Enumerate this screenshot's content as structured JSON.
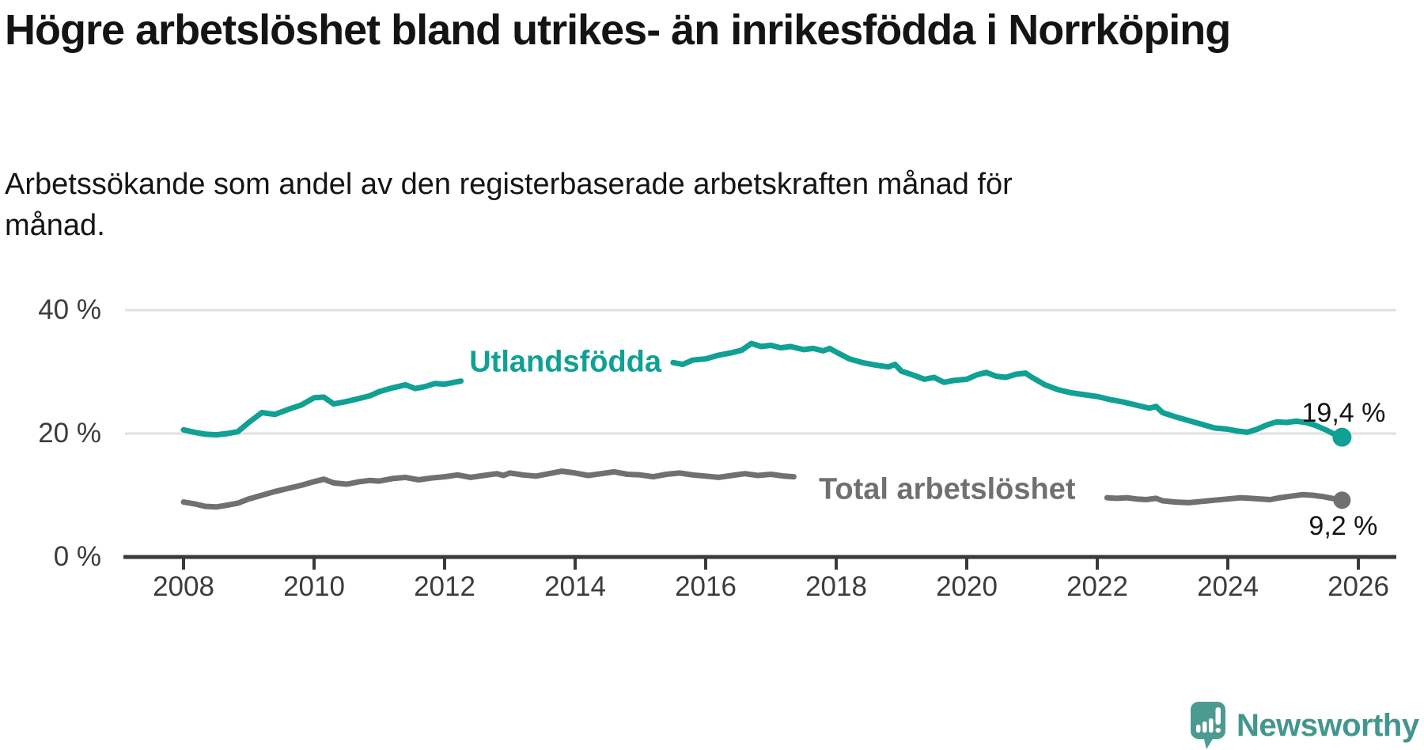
{
  "header": {
    "title": "Högre arbetslöshet bland utrikes- än inrikesfödda i Norrköping",
    "subtitle": "Arbetssökande som andel av den registerbaserade arbetskraften månad för månad."
  },
  "footer": {
    "brand_name": "Newsworthy",
    "logo_icon": "newsworthy-chart-speech-bubble-icon"
  },
  "colors": {
    "foreign_born_line": "#10A094",
    "total_line": "#707072",
    "grid_line": "#E1E1E1",
    "axis_line": "#3A3A3A",
    "tick_label": "#3C3C3C",
    "heading_text": "#141414",
    "annotation_text": "#141414",
    "logo_bubble": "#4C9B93",
    "logo_text": "#43968E"
  },
  "chart_data": {
    "type": "line",
    "title": "Högre arbetslöshet bland utrikes- än inrikesfödda i Norrköping",
    "subtitle": "Arbetssökande som andel av den registerbaserade arbetskraften månad för månad.",
    "grid": "horizontal-only",
    "legend_position": "inline-on-line",
    "x_axis": {
      "unit": "year",
      "tick_years": [
        2008,
        2010,
        2012,
        2014,
        2016,
        2018,
        2020,
        2022,
        2024,
        2026
      ],
      "range": [
        2007.1,
        2026.55
      ]
    },
    "y_axis": {
      "unit": "percent",
      "ticks": [
        {
          "value": 0,
          "label": "0 %"
        },
        {
          "value": 20,
          "label": "20 %"
        },
        {
          "value": 40,
          "label": "40 %"
        }
      ],
      "gridline_values": [
        20,
        40
      ],
      "range": [
        0,
        46
      ]
    },
    "series": [
      {
        "name": "Utlandsfödda",
        "color": "#10A094",
        "end_label": "19,4 %",
        "end_value": 19.4,
        "inline_label": {
          "text": "Utlandsfödda",
          "year": 2013.85,
          "value": 31.5
        },
        "label_gap_years": [
          2012.25,
          2015.5
        ],
        "points": [
          [
            2008.0,
            20.6
          ],
          [
            2008.17,
            20.2
          ],
          [
            2008.33,
            19.9
          ],
          [
            2008.5,
            19.8
          ],
          [
            2008.67,
            20.0
          ],
          [
            2008.83,
            20.3
          ],
          [
            2009.0,
            21.8
          ],
          [
            2009.2,
            23.4
          ],
          [
            2009.4,
            23.1
          ],
          [
            2009.6,
            23.9
          ],
          [
            2009.8,
            24.6
          ],
          [
            2010.0,
            25.8
          ],
          [
            2010.15,
            25.9
          ],
          [
            2010.3,
            24.8
          ],
          [
            2010.5,
            25.2
          ],
          [
            2010.7,
            25.7
          ],
          [
            2010.85,
            26.1
          ],
          [
            2011.0,
            26.8
          ],
          [
            2011.2,
            27.4
          ],
          [
            2011.4,
            27.9
          ],
          [
            2011.55,
            27.3
          ],
          [
            2011.7,
            27.6
          ],
          [
            2011.85,
            28.1
          ],
          [
            2012.0,
            28.0
          ],
          [
            2012.25,
            28.5
          ],
          [
            2012.5,
            28.7
          ],
          [
            2012.75,
            28.9
          ],
          [
            2013.0,
            29.2
          ],
          [
            2013.25,
            29.4
          ],
          [
            2013.5,
            29.5
          ],
          [
            2013.75,
            29.8
          ],
          [
            2014.0,
            30.1
          ],
          [
            2014.25,
            30.3
          ],
          [
            2014.5,
            30.6
          ],
          [
            2014.75,
            30.8
          ],
          [
            2015.0,
            31.0
          ],
          [
            2015.25,
            31.3
          ],
          [
            2015.5,
            31.5
          ],
          [
            2015.65,
            31.2
          ],
          [
            2015.8,
            31.9
          ],
          [
            2016.0,
            32.1
          ],
          [
            2016.2,
            32.7
          ],
          [
            2016.4,
            33.1
          ],
          [
            2016.55,
            33.5
          ],
          [
            2016.7,
            34.6
          ],
          [
            2016.85,
            34.1
          ],
          [
            2017.0,
            34.3
          ],
          [
            2017.15,
            33.9
          ],
          [
            2017.3,
            34.1
          ],
          [
            2017.5,
            33.6
          ],
          [
            2017.65,
            33.8
          ],
          [
            2017.8,
            33.4
          ],
          [
            2017.9,
            33.8
          ],
          [
            2018.0,
            33.2
          ],
          [
            2018.2,
            32.1
          ],
          [
            2018.4,
            31.5
          ],
          [
            2018.6,
            31.1
          ],
          [
            2018.8,
            30.8
          ],
          [
            2018.9,
            31.2
          ],
          [
            2019.0,
            30.1
          ],
          [
            2019.2,
            29.4
          ],
          [
            2019.35,
            28.8
          ],
          [
            2019.5,
            29.1
          ],
          [
            2019.65,
            28.3
          ],
          [
            2019.8,
            28.6
          ],
          [
            2020.0,
            28.8
          ],
          [
            2020.15,
            29.5
          ],
          [
            2020.3,
            29.9
          ],
          [
            2020.45,
            29.3
          ],
          [
            2020.6,
            29.1
          ],
          [
            2020.75,
            29.6
          ],
          [
            2020.9,
            29.8
          ],
          [
            2021.0,
            29.1
          ],
          [
            2021.2,
            27.9
          ],
          [
            2021.4,
            27.1
          ],
          [
            2021.6,
            26.6
          ],
          [
            2021.8,
            26.3
          ],
          [
            2022.0,
            26.0
          ],
          [
            2022.2,
            25.5
          ],
          [
            2022.4,
            25.1
          ],
          [
            2022.6,
            24.6
          ],
          [
            2022.8,
            24.1
          ],
          [
            2022.9,
            24.4
          ],
          [
            2023.0,
            23.4
          ],
          [
            2023.2,
            22.7
          ],
          [
            2023.4,
            22.1
          ],
          [
            2023.6,
            21.5
          ],
          [
            2023.8,
            20.9
          ],
          [
            2024.0,
            20.7
          ],
          [
            2024.15,
            20.4
          ],
          [
            2024.3,
            20.2
          ],
          [
            2024.45,
            20.7
          ],
          [
            2024.6,
            21.4
          ],
          [
            2024.75,
            21.9
          ],
          [
            2024.9,
            21.8
          ],
          [
            2025.05,
            22.0
          ],
          [
            2025.2,
            21.8
          ],
          [
            2025.35,
            21.3
          ],
          [
            2025.5,
            20.6
          ],
          [
            2025.65,
            19.8
          ],
          [
            2025.75,
            19.4
          ]
        ]
      },
      {
        "name": "Total arbetslöshet",
        "color": "#707072",
        "end_label": "9,2 %",
        "end_value": 9.2,
        "inline_label": {
          "text": "Total arbetslöshet",
          "year": 2019.7,
          "value": 10.9
        },
        "label_gap_years": [
          2017.35,
          2022.15
        ],
        "points": [
          [
            2008.0,
            8.9
          ],
          [
            2008.17,
            8.6
          ],
          [
            2008.33,
            8.2
          ],
          [
            2008.5,
            8.1
          ],
          [
            2008.67,
            8.4
          ],
          [
            2008.83,
            8.7
          ],
          [
            2009.0,
            9.4
          ],
          [
            2009.2,
            10.0
          ],
          [
            2009.4,
            10.6
          ],
          [
            2009.6,
            11.1
          ],
          [
            2009.8,
            11.6
          ],
          [
            2010.0,
            12.2
          ],
          [
            2010.15,
            12.6
          ],
          [
            2010.3,
            12.0
          ],
          [
            2010.5,
            11.8
          ],
          [
            2010.7,
            12.2
          ],
          [
            2010.85,
            12.4
          ],
          [
            2011.0,
            12.3
          ],
          [
            2011.2,
            12.7
          ],
          [
            2011.4,
            12.9
          ],
          [
            2011.6,
            12.5
          ],
          [
            2011.8,
            12.8
          ],
          [
            2012.0,
            13.0
          ],
          [
            2012.2,
            13.3
          ],
          [
            2012.4,
            12.9
          ],
          [
            2012.6,
            13.2
          ],
          [
            2012.8,
            13.5
          ],
          [
            2012.9,
            13.2
          ],
          [
            2013.0,
            13.6
          ],
          [
            2013.2,
            13.3
          ],
          [
            2013.4,
            13.1
          ],
          [
            2013.6,
            13.5
          ],
          [
            2013.8,
            13.9
          ],
          [
            2014.0,
            13.6
          ],
          [
            2014.2,
            13.2
          ],
          [
            2014.4,
            13.5
          ],
          [
            2014.6,
            13.8
          ],
          [
            2014.8,
            13.4
          ],
          [
            2015.0,
            13.3
          ],
          [
            2015.2,
            13.0
          ],
          [
            2015.4,
            13.4
          ],
          [
            2015.6,
            13.6
          ],
          [
            2015.8,
            13.3
          ],
          [
            2016.0,
            13.1
          ],
          [
            2016.2,
            12.9
          ],
          [
            2016.4,
            13.2
          ],
          [
            2016.6,
            13.5
          ],
          [
            2016.8,
            13.2
          ],
          [
            2017.0,
            13.4
          ],
          [
            2017.2,
            13.1
          ],
          [
            2017.35,
            13.0
          ],
          [
            2017.6,
            13.2
          ],
          [
            2018.0,
            12.8
          ],
          [
            2018.5,
            12.3
          ],
          [
            2019.0,
            11.8
          ],
          [
            2019.5,
            11.3
          ],
          [
            2020.0,
            11.6
          ],
          [
            2020.4,
            12.5
          ],
          [
            2020.8,
            12.2
          ],
          [
            2021.0,
            11.9
          ],
          [
            2021.5,
            10.8
          ],
          [
            2022.0,
            10.0
          ],
          [
            2022.15,
            9.6
          ],
          [
            2022.3,
            9.5
          ],
          [
            2022.45,
            9.6
          ],
          [
            2022.6,
            9.4
          ],
          [
            2022.75,
            9.3
          ],
          [
            2022.9,
            9.5
          ],
          [
            2023.0,
            9.1
          ],
          [
            2023.2,
            8.9
          ],
          [
            2023.4,
            8.8
          ],
          [
            2023.6,
            9.0
          ],
          [
            2023.8,
            9.2
          ],
          [
            2024.0,
            9.4
          ],
          [
            2024.2,
            9.6
          ],
          [
            2024.35,
            9.5
          ],
          [
            2024.5,
            9.4
          ],
          [
            2024.65,
            9.3
          ],
          [
            2024.8,
            9.6
          ],
          [
            2025.0,
            9.9
          ],
          [
            2025.15,
            10.1
          ],
          [
            2025.3,
            10.0
          ],
          [
            2025.45,
            9.8
          ],
          [
            2025.6,
            9.5
          ],
          [
            2025.75,
            9.2
          ]
        ]
      }
    ]
  }
}
